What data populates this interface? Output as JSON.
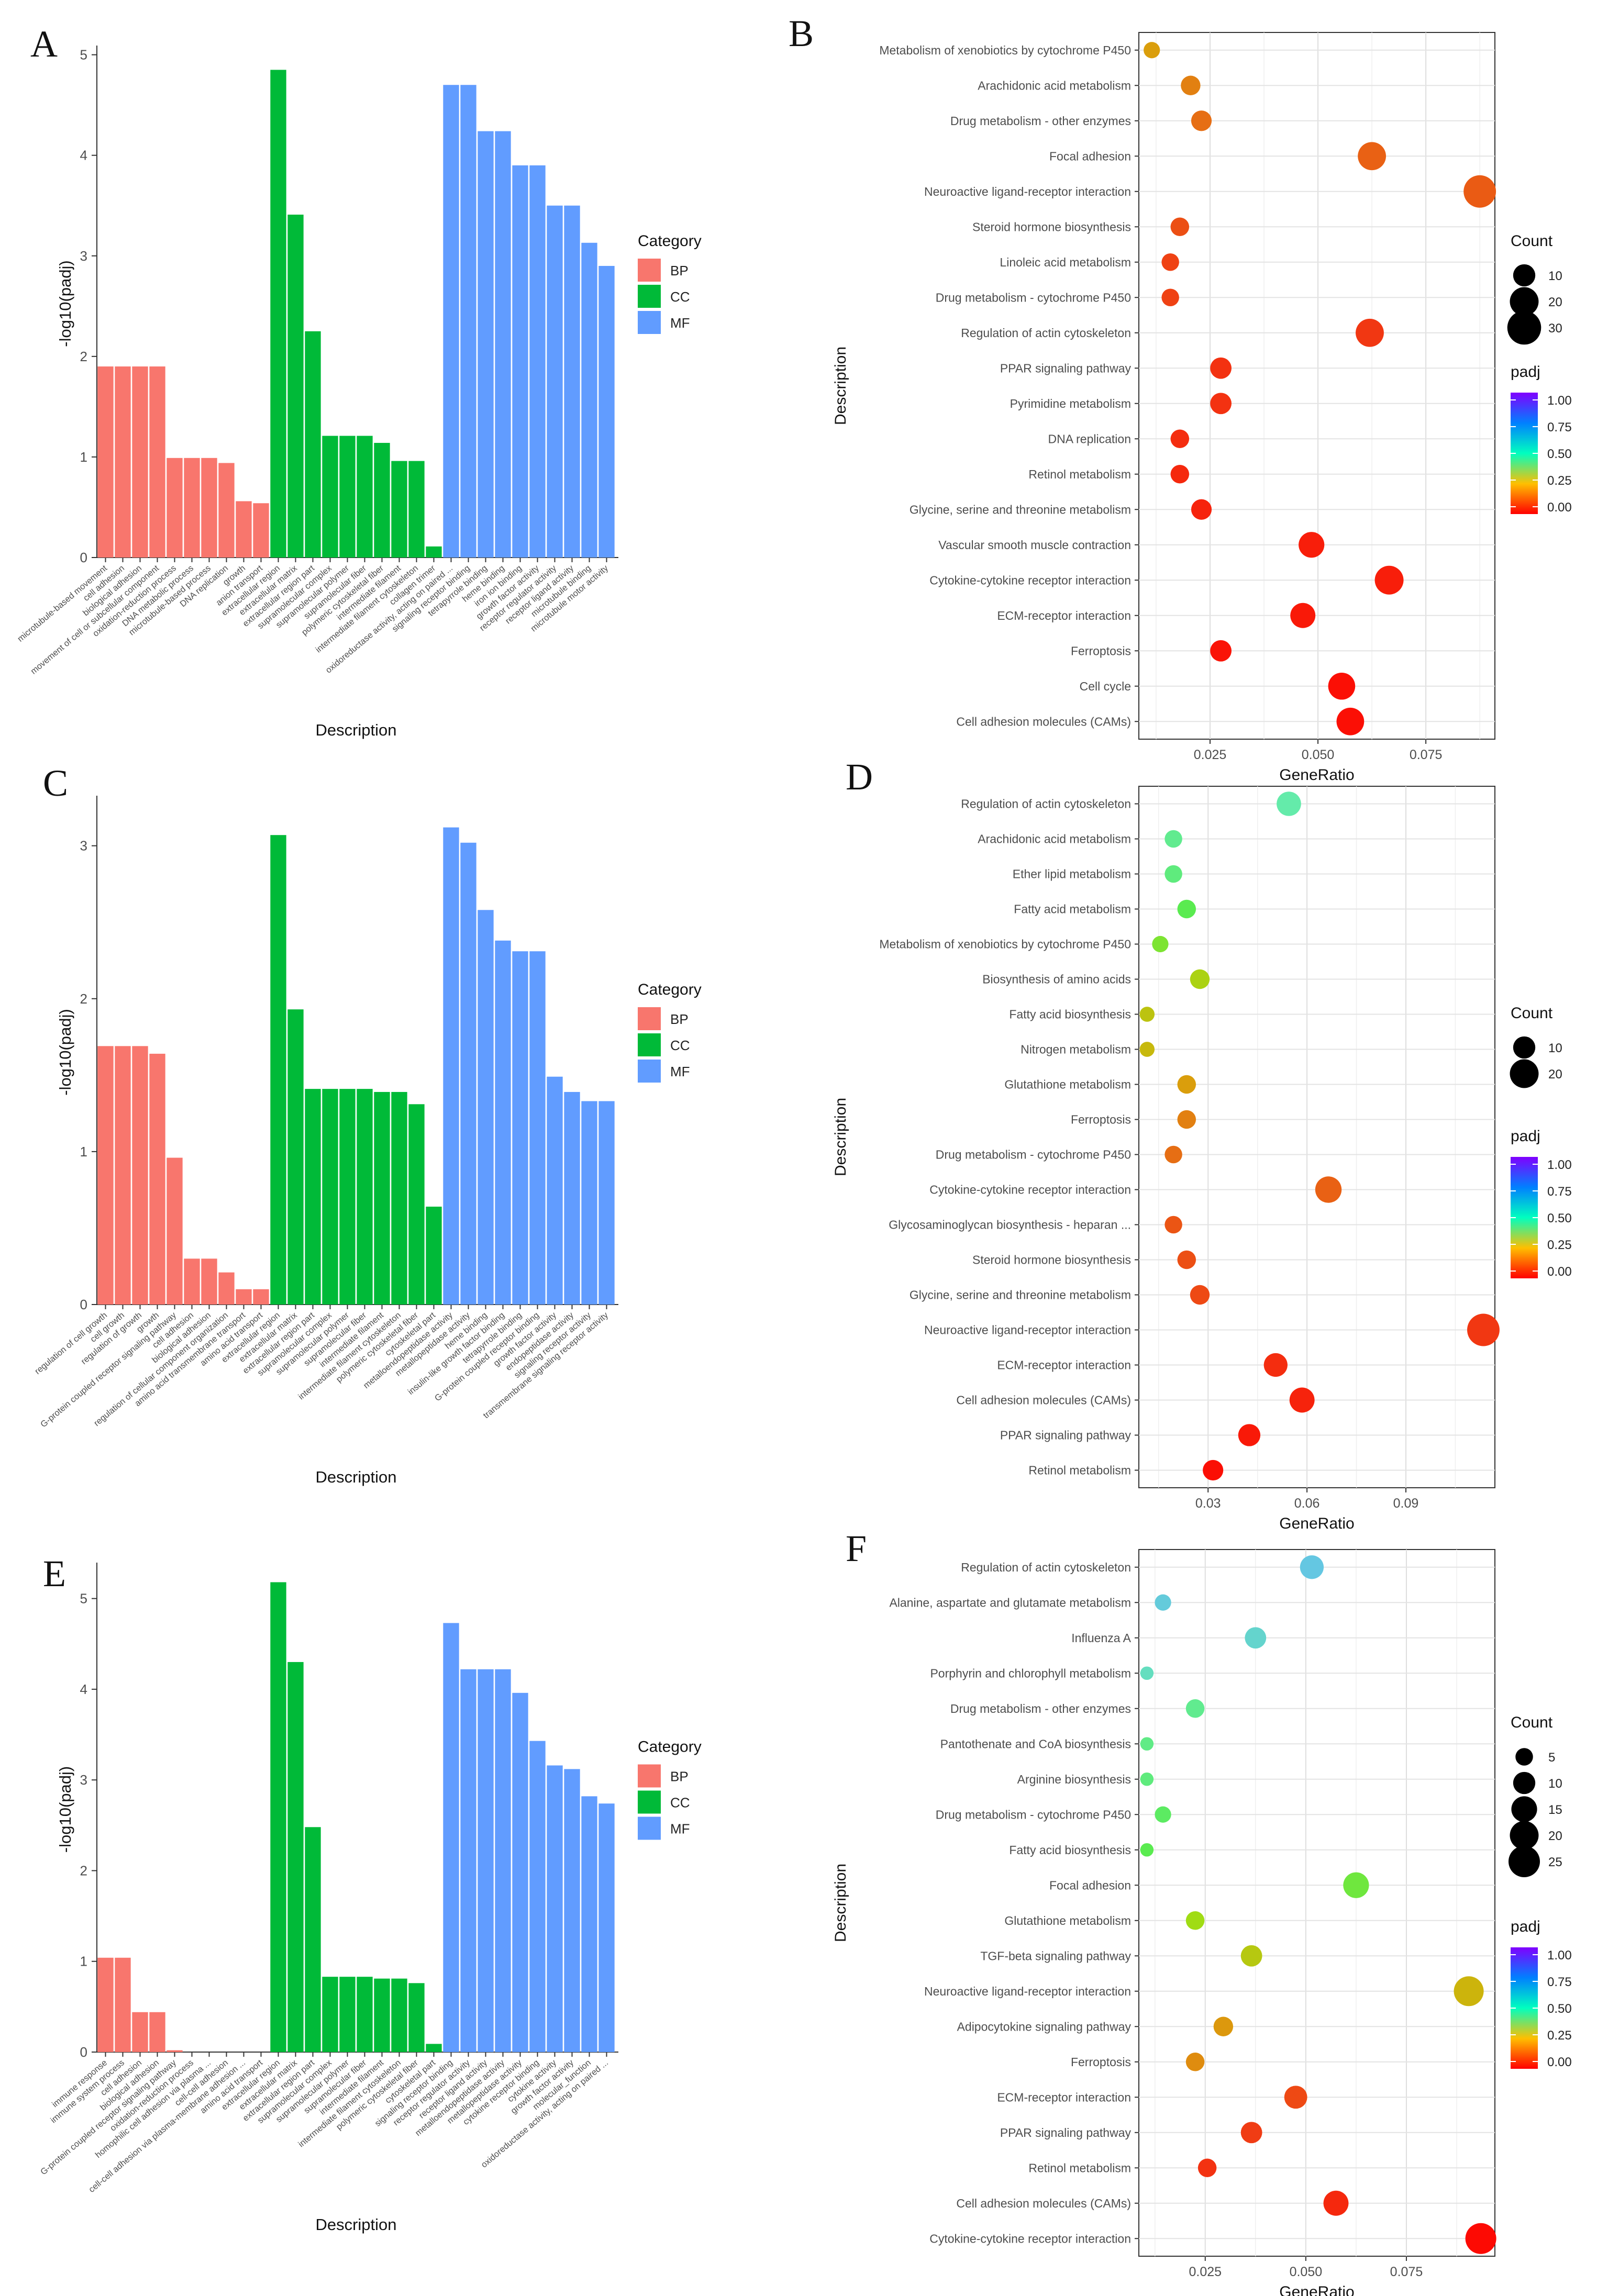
{
  "figure": {
    "panels": [
      "A",
      "B",
      "C",
      "D",
      "E",
      "F"
    ]
  },
  "colors": {
    "BP": "#F8766D",
    "CC": "#00BA38",
    "MF": "#619CFF",
    "grid": "#e6e6e6",
    "axis": "#333333"
  },
  "chart_data": [
    {
      "panel": "A",
      "type": "bar",
      "title": "",
      "xlabel": "Description",
      "ylabel": "-log10(padj)",
      "ylim": [
        0,
        5.05
      ],
      "yticks": [
        0,
        1,
        2,
        3,
        4,
        5
      ],
      "legend": {
        "title": "Category",
        "items": [
          "BP",
          "CC",
          "MF"
        ],
        "placement": "right"
      },
      "categories": [
        "microtubule-based movement",
        "cell adhesion",
        "biological adhesion",
        "movement of cell or subcellular component",
        "oxidation-reduction process",
        "DNA metabolic process",
        "microtubule-based process",
        "DNA replication",
        "growth",
        "anion transport",
        "extracellular region",
        "extracellular matrix",
        "extracellular region part",
        "supramolecular complex",
        "supramolecular polymer",
        "supramolecular fiber",
        "polymeric cytoskeletal fiber",
        "intermediate filament",
        "intermediate filament cytoskeleton",
        "collagen trimer",
        "oxidoreductase activity, acting on paired ...",
        "signaling receptor binding",
        "tetrapyrrole binding",
        "heme binding",
        "iron ion binding",
        "growth factor activity",
        "receptor regulator activity",
        "receptor ligand activity",
        "microtubule binding",
        "microtubule motor activity"
      ],
      "groups": [
        "BP",
        "BP",
        "BP",
        "BP",
        "BP",
        "BP",
        "BP",
        "BP",
        "BP",
        "BP",
        "CC",
        "CC",
        "CC",
        "CC",
        "CC",
        "CC",
        "CC",
        "CC",
        "CC",
        "CC",
        "MF",
        "MF",
        "MF",
        "MF",
        "MF",
        "MF",
        "MF",
        "MF",
        "MF",
        "MF"
      ],
      "values": [
        1.9,
        1.9,
        1.9,
        1.9,
        0.99,
        0.99,
        0.99,
        0.94,
        0.56,
        0.54,
        4.85,
        3.41,
        2.25,
        1.21,
        1.21,
        1.21,
        1.14,
        0.96,
        0.96,
        0.11,
        4.7,
        4.7,
        4.24,
        4.24,
        3.9,
        3.9,
        3.5,
        3.5,
        3.13,
        2.9
      ]
    },
    {
      "panel": "B",
      "type": "scatter",
      "xlabel": "GeneRatio",
      "ylabel": "Description",
      "xlim": [
        0.0085,
        0.091
      ],
      "xticks": [
        0.025,
        0.05,
        0.075
      ],
      "xtick_labels": [
        "0.025",
        "0.050",
        "0.075"
      ],
      "size_legend": {
        "title": "Count",
        "values": [
          10,
          20,
          30
        ]
      },
      "color_legend": {
        "title": "padj",
        "ticks": [
          "1.00",
          "0.75",
          "0.50",
          "0.25",
          "0.00"
        ]
      },
      "terms": [
        "Metabolism of xenobiotics by cytochrome P450",
        "Arachidonic acid metabolism",
        "Drug metabolism - other enzymes",
        "Focal adhesion",
        "Neuroactive ligand-receptor interaction",
        "Steroid hormone biosynthesis",
        "Linoleic acid metabolism",
        "Drug metabolism - cytochrome P450",
        "Regulation of actin cytoskeleton",
        "PPAR signaling pathway",
        "Pyrimidine metabolism",
        "DNA replication",
        "Retinol metabolism",
        "Glycine, serine and threonine metabolism",
        "Vascular smooth muscle contraction",
        "Cytokine-cytokine receptor interaction",
        "ECM-receptor interaction",
        "Ferroptosis",
        "Cell cycle",
        "Cell adhesion molecules (CAMs)"
      ],
      "gene_ratio": [
        0.0115,
        0.0205,
        0.023,
        0.0625,
        0.0875,
        0.018,
        0.0158,
        0.0158,
        0.062,
        0.0275,
        0.0275,
        0.018,
        0.018,
        0.023,
        0.0485,
        0.0665,
        0.0465,
        0.0275,
        0.0555,
        0.0575
      ],
      "count": [
        4,
        7,
        8,
        19,
        27,
        6,
        5,
        5,
        19,
        9,
        9,
        6,
        6,
        8,
        15,
        20,
        14,
        9,
        17,
        18
      ],
      "padj": [
        0.28,
        0.23,
        0.2,
        0.18,
        0.17,
        0.15,
        0.13,
        0.13,
        0.11,
        0.1,
        0.1,
        0.09,
        0.08,
        0.07,
        0.06,
        0.06,
        0.05,
        0.04,
        0.03,
        0.03
      ]
    },
    {
      "panel": "C",
      "type": "bar",
      "xlabel": "Description",
      "ylabel": "-log10(padj)",
      "ylim": [
        0,
        3.3
      ],
      "yticks": [
        0,
        1,
        2,
        3
      ],
      "legend": {
        "title": "Category",
        "items": [
          "BP",
          "CC",
          "MF"
        ],
        "placement": "right"
      },
      "categories": [
        "regulation of cell growth",
        "cell growth",
        "regulation of growth",
        "growth",
        "G-protein coupled receptor signaling pathway",
        "cell adhesion",
        "biological adhesion",
        "regulation of cellular component organization",
        "amino acid transmembrane transport",
        "amino acid transport",
        "extracellular region",
        "extracellular matrix",
        "extracellular region part",
        "supramolecular complex",
        "supramolecular polymer",
        "supramolecular fiber",
        "intermediate filament",
        "intermediate filament cytoskeleton",
        "polymeric cytoskeletal fiber",
        "cytoskeletal part",
        "metalloendopeptidase activity",
        "metallopeptidase activity",
        "heme binding",
        "insulin-like growth factor binding",
        "tetrapyrrole binding",
        "G-protein coupled receptor binding",
        "growth factor activity",
        "endopeptidase activity",
        "signaling receptor activity",
        "transmembrane signaling receptor activity"
      ],
      "groups": [
        "BP",
        "BP",
        "BP",
        "BP",
        "BP",
        "BP",
        "BP",
        "BP",
        "BP",
        "BP",
        "CC",
        "CC",
        "CC",
        "CC",
        "CC",
        "CC",
        "CC",
        "CC",
        "CC",
        "CC",
        "MF",
        "MF",
        "MF",
        "MF",
        "MF",
        "MF",
        "MF",
        "MF",
        "MF",
        "MF"
      ],
      "values": [
        1.69,
        1.69,
        1.69,
        1.64,
        0.96,
        0.3,
        0.3,
        0.21,
        0.1,
        0.1,
        3.07,
        1.93,
        1.41,
        1.41,
        1.41,
        1.41,
        1.39,
        1.39,
        1.31,
        0.64,
        3.12,
        3.02,
        2.58,
        2.38,
        2.31,
        2.31,
        1.49,
        1.39,
        1.33,
        1.33
      ]
    },
    {
      "panel": "D",
      "type": "scatter",
      "xlabel": "GeneRatio",
      "ylabel": "Description",
      "xlim": [
        0.009,
        0.117
      ],
      "xticks": [
        0.03,
        0.06,
        0.09
      ],
      "xtick_labels": [
        "0.03",
        "0.06",
        "0.09"
      ],
      "size_legend": {
        "title": "Count",
        "values": [
          10,
          20
        ]
      },
      "color_legend": {
        "title": "padj",
        "ticks": [
          "1.00",
          "0.75",
          "0.50",
          "0.25",
          "0.00"
        ]
      },
      "terms": [
        "Regulation of actin cytoskeleton",
        "Arachidonic acid metabolism",
        "Ether lipid metabolism",
        "Fatty acid metabolism",
        "Metabolism of xenobiotics by cytochrome P450",
        "Biosynthesis of amino acids",
        "Fatty acid biosynthesis",
        "Nitrogen metabolism",
        "Glutathione metabolism",
        "Ferroptosis",
        "Drug metabolism - cytochrome P450",
        "Cytokine-cytokine receptor interaction",
        "Glycosaminoglycan biosynthesis - heparan ...",
        "Steroid hormone biosynthesis",
        "Glycine, serine and threonine metabolism",
        "Neuroactive ligand-receptor interaction",
        "ECM-receptor interaction",
        "Cell adhesion molecules (CAMs)",
        "PPAR signaling pathway",
        "Retinol metabolism"
      ],
      "gene_ratio": [
        0.0545,
        0.0195,
        0.0195,
        0.0235,
        0.0155,
        0.0275,
        0.0115,
        0.0115,
        0.0235,
        0.0235,
        0.0195,
        0.0665,
        0.0195,
        0.0235,
        0.0275,
        0.1135,
        0.0505,
        0.0585,
        0.0425,
        0.0315
      ],
      "count": [
        13,
        5,
        5,
        6,
        4,
        7,
        3,
        3,
        6,
        6,
        5,
        16,
        5,
        6,
        7,
        27,
        12,
        14,
        10,
        8
      ],
      "padj": [
        0.6,
        0.57,
        0.55,
        0.5,
        0.45,
        0.38,
        0.35,
        0.33,
        0.28,
        0.23,
        0.2,
        0.18,
        0.16,
        0.15,
        0.14,
        0.11,
        0.09,
        0.07,
        0.05,
        0.03
      ]
    },
    {
      "panel": "E",
      "type": "bar",
      "xlabel": "Description",
      "ylabel": "-log10(padj)",
      "ylim": [
        0,
        5.35
      ],
      "yticks": [
        0,
        1,
        2,
        3,
        4,
        5
      ],
      "legend": {
        "title": "Category",
        "items": [
          "BP",
          "CC",
          "MF"
        ],
        "placement": "right"
      },
      "categories": [
        "immune response",
        "immune system process",
        "cell adhesion",
        "biological adhesion",
        "G-protein coupled receptor signaling pathway",
        "oxidation-reduction process",
        "homophilic cell adhesion via plasma ...",
        "cell-cell adhesion",
        "cell-cell adhesion via plasma-membrane adhesion ...",
        "amino acid transport",
        "extracellular region",
        "extracellular matrix",
        "extracellular region part",
        "supramolecular complex",
        "supramolecular polymer",
        "supramolecular fiber",
        "intermediate filament",
        "intermediate filament cytoskeleton",
        "polymeric cytoskeletal fiber",
        "cytoskeletal part",
        "signaling receptor binding",
        "receptor regulator activity",
        "receptor ligand activity",
        "metalloendopeptidase activity",
        "metallopeptidase activity",
        "cytokine receptor binding",
        "cytokine activity",
        "growth factor activity",
        "molecular_function",
        "oxidoreductase activity, acting on paired ..."
      ],
      "groups": [
        "BP",
        "BP",
        "BP",
        "BP",
        "BP",
        "BP",
        "BP",
        "BP",
        "BP",
        "BP",
        "CC",
        "CC",
        "CC",
        "CC",
        "CC",
        "CC",
        "CC",
        "CC",
        "CC",
        "CC",
        "MF",
        "MF",
        "MF",
        "MF",
        "MF",
        "MF",
        "MF",
        "MF",
        "MF",
        "MF"
      ],
      "values": [
        1.04,
        1.04,
        0.44,
        0.44,
        0.02,
        0,
        0,
        0,
        0,
        0,
        5.18,
        4.3,
        2.48,
        0.83,
        0.83,
        0.83,
        0.81,
        0.81,
        0.76,
        0.09,
        4.73,
        4.22,
        4.22,
        4.22,
        3.96,
        3.43,
        3.16,
        3.12,
        2.82,
        2.74
      ]
    },
    {
      "panel": "F",
      "type": "scatter",
      "xlabel": "GeneRatio",
      "ylabel": "Description",
      "xlim": [
        0.0085,
        0.097
      ],
      "xticks": [
        0.025,
        0.05,
        0.075
      ],
      "xtick_labels": [
        "0.025",
        "0.050",
        "0.075"
      ],
      "size_legend": {
        "title": "Count",
        "values": [
          5,
          10,
          15,
          20,
          25
        ]
      },
      "color_legend": {
        "title": "padj",
        "ticks": [
          "1.00",
          "0.75",
          "0.50",
          "0.25",
          "0.00"
        ]
      },
      "terms": [
        "Regulation of actin cytoskeleton",
        "Alanine, aspartate and glutamate metabolism",
        "Influenza A",
        "Porphyrin and chlorophyll metabolism",
        "Drug metabolism - other enzymes",
        "Pantothenate and CoA biosynthesis",
        "Arginine biosynthesis",
        "Drug metabolism - cytochrome P450",
        "Fatty acid biosynthesis",
        "Focal adhesion",
        "Glutathione metabolism",
        "TGF-beta signaling pathway",
        "Neuroactive ligand-receptor interaction",
        "Adipocytokine signaling pathway",
        "Ferroptosis",
        "ECM-receptor interaction",
        "PPAR signaling pathway",
        "Retinol metabolism",
        "Cell adhesion molecules (CAMs)",
        "Cytokine-cytokine receptor interaction"
      ],
      "gene_ratio": [
        0.0515,
        0.0145,
        0.0375,
        0.0105,
        0.0225,
        0.0105,
        0.0105,
        0.0145,
        0.0105,
        0.0625,
        0.0225,
        0.0365,
        0.0905,
        0.0295,
        0.0225,
        0.0475,
        0.0365,
        0.0255,
        0.0575,
        0.0935
      ],
      "count": [
        12,
        4,
        9,
        2,
        6,
        2,
        2,
        4,
        2,
        15,
        6,
        9,
        22,
        7,
        6,
        11,
        9,
        6,
        14,
        24
      ],
      "padj": [
        0.68,
        0.67,
        0.65,
        0.63,
        0.57,
        0.56,
        0.55,
        0.52,
        0.5,
        0.47,
        0.4,
        0.36,
        0.32,
        0.27,
        0.25,
        0.14,
        0.12,
        0.1,
        0.08,
        0.02
      ]
    }
  ]
}
